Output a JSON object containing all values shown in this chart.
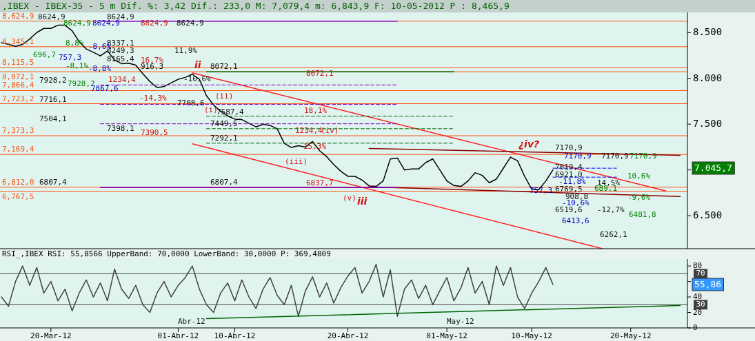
{
  "chart_data": [
    {
      "type": "line",
      "title": ",IBEX - IBEX-35 -  5 m Dif. %: 3,42 Dif.: 233,0 M: 7,079,4 m: 6,843,9 F: 10-05-2012 P : 8,465,9",
      "categories": [
        null,
        null,
        null,
        null,
        null,
        null,
        null,
        null,
        null,
        null,
        null,
        null,
        null,
        null,
        null,
        null,
        null,
        null,
        null,
        null,
        null,
        null,
        null,
        null,
        null,
        null,
        null,
        null,
        null,
        null,
        null,
        null,
        null,
        null,
        null,
        null,
        null,
        null,
        null,
        null,
        null,
        null,
        null,
        null,
        null,
        null,
        null,
        null,
        null,
        null,
        null,
        null,
        null,
        null,
        null,
        null,
        null,
        null,
        null,
        null,
        null,
        null,
        null,
        null,
        null,
        null,
        null,
        null,
        null,
        null,
        null,
        null,
        null,
        null,
        null,
        null,
        null,
        null,
        null,
        null,
        null,
        null,
        null,
        null,
        null,
        null,
        null,
        null,
        null,
        null,
        null,
        null,
        null,
        null,
        null,
        null,
        null
      ],
      "ylim": [
        6140,
        8720
      ],
      "yticks": [
        {
          "value": 6500,
          "label": "6.500"
        },
        {
          "value": 7000,
          "label": null
        },
        {
          "value": 7500,
          "label": "7.500"
        },
        {
          "value": 8000,
          "label": "8.000"
        },
        {
          "value": 8500,
          "label": "8.500"
        }
      ],
      "tick_labels": "y",
      "series": [
        {
          "color": "#000000",
          "values": [
            8390,
            8370,
            8350,
            8370,
            8430,
            8500,
            8545,
            8545,
            8580,
            8580,
            8520,
            8400,
            8320,
            8285,
            8245,
            8300,
            8200,
            8160,
            8165,
            8145,
            8050,
            7965,
            7900,
            7910,
            7950,
            7990,
            8010,
            8045,
            7990,
            7810,
            7710,
            7640,
            7590,
            7555,
            7550,
            7510,
            7470,
            7500,
            7485,
            7450,
            7290,
            7245,
            7265,
            7250,
            7310,
            7210,
            7145,
            7060,
            6985,
            6930,
            6930,
            6890,
            6825,
            6820,
            6880,
            7120,
            7130,
            7000,
            7010,
            7010,
            7080,
            7120,
            7000,
            6880,
            6830,
            6820,
            6880,
            6970,
            6940,
            6860,
            6900,
            7020,
            7140,
            7100,
            6930,
            6790,
            6785,
            6880,
            7000,
            null,
            null,
            null,
            null,
            null,
            null,
            null,
            null,
            null,
            null,
            null,
            null,
            null,
            null,
            null,
            null,
            null,
            null
          ]
        },
        {
          "color": "#ff2020",
          "values": [
            null,
            null,
            null,
            null,
            null,
            null,
            null,
            null,
            null,
            null,
            null,
            null,
            null,
            null,
            null,
            null,
            null,
            null,
            null,
            null,
            null,
            null,
            null,
            null,
            null,
            null,
            null,
            8060,
            null,
            null,
            null,
            null,
            null,
            null,
            null,
            null,
            null,
            null,
            null,
            null,
            null,
            null,
            null,
            null,
            null,
            null,
            null,
            null,
            null,
            null,
            null,
            null,
            null,
            null,
            null,
            null,
            null,
            null,
            null,
            null,
            null,
            null,
            null,
            null,
            null,
            null,
            null,
            null,
            null,
            null,
            null,
            null,
            null,
            null,
            null,
            null,
            null,
            null,
            null,
            null,
            null,
            null,
            null,
            null,
            null,
            null,
            null,
            null,
            null,
            null,
            null,
            null,
            null,
            null,
            6770,
            null,
            null
          ]
        },
        {
          "color": "#ff2020",
          "values": [
            null,
            null,
            null,
            null,
            null,
            null,
            null,
            null,
            null,
            null,
            null,
            null,
            null,
            null,
            null,
            null,
            null,
            null,
            null,
            null,
            null,
            null,
            null,
            null,
            null,
            null,
            null,
            7285,
            null,
            null,
            null,
            null,
            null,
            null,
            null,
            null,
            null,
            null,
            null,
            null,
            null,
            null,
            null,
            null,
            null,
            null,
            null,
            null,
            null,
            null,
            null,
            null,
            null,
            null,
            null,
            null,
            null,
            null,
            null,
            null,
            null,
            null,
            null,
            null,
            null,
            null,
            null,
            null,
            null,
            null,
            null,
            null,
            null,
            null,
            null,
            null,
            null,
            null,
            null,
            null,
            null,
            null,
            null,
            null,
            null,
            6140,
            null,
            null,
            null,
            null,
            null,
            null,
            null,
            null,
            null,
            null,
            null
          ]
        },
        {
          "color": "#8b0000",
          "values": [
            null,
            null,
            null,
            null,
            null,
            null,
            null,
            null,
            null,
            null,
            null,
            null,
            null,
            null,
            null,
            null,
            null,
            null,
            null,
            null,
            null,
            null,
            null,
            null,
            null,
            null,
            null,
            null,
            null,
            null,
            null,
            null,
            null,
            null,
            null,
            null,
            null,
            null,
            null,
            null,
            null,
            null,
            null,
            null,
            null,
            null,
            null,
            null,
            null,
            null,
            null,
            null,
            7235,
            null,
            null,
            null,
            null,
            null,
            null,
            null,
            null,
            null,
            null,
            null,
            null,
            null,
            null,
            null,
            null,
            null,
            null,
            null,
            null,
            null,
            null,
            null,
            null,
            null,
            null,
            null,
            null,
            null,
            null,
            null,
            null,
            null,
            null,
            null,
            null,
            null,
            null,
            null,
            null,
            null,
            null,
            null,
            7160
          ]
        },
        {
          "color": "#8b0000",
          "values": [
            null,
            null,
            null,
            null,
            null,
            null,
            null,
            null,
            null,
            null,
            null,
            null,
            null,
            null,
            null,
            null,
            null,
            null,
            null,
            null,
            null,
            null,
            null,
            null,
            null,
            null,
            null,
            null,
            null,
            null,
            null,
            null,
            null,
            null,
            null,
            null,
            null,
            null,
            null,
            null,
            null,
            null,
            null,
            null,
            null,
            null,
            null,
            null,
            null,
            null,
            null,
            null,
            6815,
            null,
            null,
            null,
            null,
            null,
            null,
            null,
            null,
            null,
            null,
            null,
            null,
            null,
            null,
            null,
            null,
            null,
            null,
            null,
            null,
            null,
            null,
            null,
            null,
            null,
            null,
            null,
            null,
            null,
            null,
            null,
            null,
            null,
            null,
            null,
            null,
            null,
            null,
            null,
            null,
            null,
            null,
            null,
            6710
          ]
        },
        {
          "color": "#8000c0",
          "values": [
            null,
            null,
            null,
            null,
            null,
            null,
            null,
            null,
            null,
            null,
            null,
            null,
            null,
            null,
            8625,
            null,
            null,
            null,
            null,
            null,
            null,
            null,
            null,
            null,
            null,
            null,
            null,
            null,
            null,
            null,
            null,
            null,
            null,
            null,
            null,
            null,
            null,
            null,
            null,
            null,
            null,
            null,
            null,
            null,
            null,
            null,
            null,
            null,
            null,
            null,
            null,
            null,
            null,
            null,
            null,
            null,
            8625,
            null,
            null,
            null,
            null,
            null,
            null,
            null,
            null,
            null,
            null,
            null,
            null,
            null,
            null,
            null,
            null,
            null,
            null,
            null,
            null,
            null,
            null,
            null,
            null,
            null,
            null,
            null,
            null,
            null,
            null,
            null,
            null,
            null,
            null,
            null,
            null,
            null,
            null,
            null,
            null
          ]
        },
        {
          "color": "#8000c0",
          "values": [
            null,
            null,
            null,
            null,
            null,
            null,
            null,
            null,
            null,
            null,
            null,
            null,
            null,
            null,
            6807,
            null,
            null,
            null,
            null,
            null,
            null,
            null,
            null,
            null,
            null,
            null,
            null,
            null,
            null,
            null,
            null,
            null,
            null,
            null,
            null,
            null,
            null,
            null,
            null,
            null,
            null,
            null,
            null,
            null,
            null,
            null,
            null,
            null,
            null,
            null,
            null,
            null,
            null,
            null,
            null,
            null,
            6807,
            null,
            null,
            null,
            null,
            null,
            null,
            null,
            null,
            null,
            null,
            null,
            null,
            null,
            null,
            null,
            null,
            null,
            null,
            null,
            null,
            null,
            null,
            null,
            null,
            null,
            null,
            null,
            null,
            null,
            null,
            null,
            null,
            null,
            null,
            null,
            null,
            null,
            null,
            null,
            null
          ]
        },
        {
          "color": "#8000c0",
          "line_style": "dashed",
          "values": [
            null,
            null,
            null,
            null,
            null,
            null,
            null,
            null,
            null,
            null,
            null,
            null,
            null,
            null,
            7928,
            null,
            null,
            null,
            null,
            null,
            null,
            null,
            null,
            null,
            null,
            null,
            null,
            null,
            null,
            null,
            null,
            null,
            null,
            null,
            null,
            null,
            null,
            null,
            null,
            null,
            null,
            null,
            null,
            null,
            null,
            null,
            null,
            null,
            null,
            null,
            null,
            null,
            null,
            null,
            null,
            null,
            7928,
            null,
            null,
            null,
            null,
            null,
            null,
            null,
            null,
            null,
            null,
            null,
            null,
            null,
            null,
            null,
            null,
            null,
            null,
            null,
            null,
            null,
            null,
            null,
            null,
            null,
            null,
            null,
            null,
            null,
            null,
            null,
            null,
            null,
            null,
            null,
            null,
            null,
            null,
            null,
            null
          ]
        },
        {
          "color": "#8000c0",
          "line_style": "dashed",
          "values": [
            null,
            null,
            null,
            null,
            null,
            null,
            null,
            null,
            null,
            null,
            null,
            null,
            null,
            null,
            7716,
            null,
            null,
            null,
            null,
            null,
            null,
            null,
            null,
            null,
            null,
            null,
            null,
            null,
            null,
            null,
            null,
            null,
            null,
            null,
            null,
            null,
            null,
            null,
            null,
            null,
            null,
            null,
            null,
            null,
            null,
            null,
            null,
            null,
            null,
            null,
            null,
            null,
            null,
            null,
            null,
            null,
            7716,
            null,
            null,
            null,
            null,
            null,
            null,
            null,
            null,
            null,
            null,
            null,
            null,
            null,
            null,
            null,
            null,
            null,
            null,
            null,
            null,
            null,
            null,
            null,
            null,
            null,
            null,
            null,
            null,
            null,
            null,
            null,
            null,
            null,
            null,
            null,
            null,
            null,
            null,
            null,
            null
          ]
        },
        {
          "color": "#8000c0",
          "line_style": "dashed",
          "values": [
            null,
            null,
            null,
            null,
            null,
            null,
            null,
            null,
            null,
            null,
            null,
            null,
            null,
            null,
            7504,
            null,
            null,
            null,
            null,
            null,
            null,
            null,
            null,
            null,
            null,
            null,
            null,
            null,
            null,
            null,
            null,
            null,
            null,
            null,
            null,
            null,
            null,
            null,
            null,
            null,
            null,
            null,
            null,
            null,
            null,
            null,
            null,
            null,
            null,
            null,
            null,
            null,
            null,
            null,
            null,
            null,
            7504,
            null,
            null,
            null,
            null,
            null,
            null,
            null,
            null,
            null,
            null,
            null,
            null,
            null,
            null,
            null,
            null,
            null,
            null,
            null,
            null,
            null,
            null,
            null,
            null,
            null,
            null,
            null,
            null,
            null,
            null,
            null,
            null,
            null,
            null,
            null,
            null,
            null,
            null,
            null,
            null
          ]
        },
        {
          "color": "#006400",
          "values": [
            null,
            null,
            null,
            null,
            null,
            null,
            null,
            null,
            null,
            null,
            null,
            null,
            null,
            null,
            null,
            null,
            null,
            null,
            null,
            null,
            null,
            null,
            null,
            null,
            null,
            null,
            null,
            null,
            null,
            8072,
            null,
            null,
            null,
            null,
            null,
            null,
            null,
            null,
            null,
            null,
            null,
            null,
            null,
            null,
            null,
            null,
            null,
            null,
            null,
            null,
            null,
            null,
            null,
            null,
            null,
            null,
            null,
            null,
            null,
            null,
            null,
            null,
            null,
            null,
            8072,
            null,
            null,
            null,
            null,
            null,
            null,
            null,
            null,
            null,
            null,
            null,
            null,
            null,
            null,
            null,
            null,
            null,
            null,
            null,
            null,
            null,
            null,
            null,
            null,
            null,
            null,
            null,
            null,
            null,
            null,
            null,
            null
          ]
        },
        {
          "color": "#006400",
          "line_style": "dashed",
          "values": [
            null,
            null,
            null,
            null,
            null,
            null,
            null,
            null,
            null,
            null,
            null,
            null,
            null,
            null,
            null,
            null,
            null,
            null,
            null,
            null,
            null,
            null,
            null,
            null,
            null,
            null,
            null,
            null,
            null,
            7587,
            null,
            null,
            null,
            null,
            null,
            null,
            null,
            null,
            null,
            null,
            null,
            null,
            null,
            null,
            null,
            null,
            null,
            null,
            null,
            null,
            null,
            null,
            null,
            null,
            null,
            null,
            null,
            null,
            null,
            null,
            null,
            null,
            null,
            null,
            7587,
            null,
            null,
            null,
            null,
            null,
            null,
            null,
            null,
            null,
            null,
            null,
            null,
            null,
            null,
            null,
            null,
            null,
            null,
            null,
            null,
            null,
            null,
            null,
            null,
            null,
            null,
            null,
            null,
            null,
            null,
            null,
            null
          ]
        },
        {
          "color": "#006400",
          "line_style": "dashed",
          "values": [
            null,
            null,
            null,
            null,
            null,
            null,
            null,
            null,
            null,
            null,
            null,
            null,
            null,
            null,
            null,
            null,
            null,
            null,
            null,
            null,
            null,
            null,
            null,
            null,
            null,
            null,
            null,
            null,
            null,
            7450,
            null,
            null,
            null,
            null,
            null,
            null,
            null,
            null,
            null,
            null,
            null,
            null,
            null,
            null,
            null,
            null,
            null,
            null,
            null,
            null,
            null,
            null,
            null,
            null,
            null,
            null,
            null,
            null,
            null,
            null,
            null,
            null,
            null,
            null,
            7450,
            null,
            null,
            null,
            null,
            null,
            null,
            null,
            null,
            null,
            null,
            null,
            null,
            null,
            null,
            null,
            null,
            null,
            null,
            null,
            null,
            null,
            null,
            null,
            null,
            null,
            null,
            null,
            null,
            null,
            null,
            null,
            null
          ]
        },
        {
          "color": "#006400",
          "line_style": "dashed",
          "values": [
            null,
            null,
            null,
            null,
            null,
            null,
            null,
            null,
            null,
            null,
            null,
            null,
            null,
            null,
            null,
            null,
            null,
            null,
            null,
            null,
            null,
            null,
            null,
            null,
            null,
            null,
            null,
            null,
            null,
            7292,
            null,
            null,
            null,
            null,
            null,
            null,
            null,
            null,
            null,
            null,
            null,
            null,
            null,
            null,
            null,
            null,
            null,
            null,
            null,
            null,
            null,
            null,
            null,
            null,
            null,
            null,
            null,
            null,
            null,
            null,
            null,
            null,
            null,
            null,
            7292,
            null,
            null,
            null,
            null,
            null,
            null,
            null,
            null,
            null,
            null,
            null,
            null,
            null,
            null,
            null,
            null,
            null,
            null,
            null,
            null,
            null,
            null,
            null,
            null,
            null,
            null,
            null,
            null,
            null,
            null,
            null,
            null
          ]
        },
        {
          "color": "#0000ff",
          "line_style": "dashed",
          "values": [
            null,
            null,
            null,
            null,
            null,
            null,
            null,
            null,
            null,
            null,
            null,
            null,
            null,
            null,
            null,
            null,
            null,
            null,
            null,
            null,
            null,
            null,
            null,
            null,
            null,
            null,
            null,
            null,
            null,
            null,
            null,
            null,
            null,
            null,
            null,
            null,
            null,
            null,
            null,
            null,
            null,
            null,
            null,
            null,
            null,
            null,
            null,
            null,
            null,
            null,
            null,
            null,
            null,
            null,
            null,
            null,
            null,
            null,
            null,
            null,
            null,
            null,
            null,
            null,
            null,
            null,
            null,
            null,
            null,
            null,
            null,
            null,
            null,
            null,
            null,
            null,
            null,
            null,
            7019,
            null,
            null,
            null,
            null,
            null,
            null,
            null,
            null,
            7019,
            null,
            null,
            null,
            null,
            null,
            null,
            null,
            null,
            null
          ]
        },
        {
          "color": "#0000ff",
          "line_style": "dashed",
          "values": [
            null,
            null,
            null,
            null,
            null,
            null,
            null,
            null,
            null,
            null,
            null,
            null,
            null,
            null,
            null,
            null,
            null,
            null,
            null,
            null,
            null,
            null,
            null,
            null,
            null,
            null,
            null,
            null,
            null,
            null,
            null,
            null,
            null,
            null,
            null,
            null,
            null,
            null,
            null,
            null,
            null,
            null,
            null,
            null,
            null,
            null,
            null,
            null,
            null,
            null,
            null,
            null,
            null,
            null,
            null,
            null,
            null,
            null,
            null,
            null,
            null,
            null,
            null,
            null,
            null,
            null,
            null,
            null,
            null,
            null,
            null,
            null,
            null,
            null,
            null,
            null,
            null,
            null,
            6921,
            null,
            null,
            null,
            null,
            null,
            null,
            null,
            null,
            6921,
            null,
            null,
            null,
            null,
            null,
            null,
            null,
            null,
            null
          ]
        }
      ],
      "ref_lines": [
        {
          "axis": "y",
          "value": 8624.9,
          "label": "8,624,9",
          "color": "#ff5010"
        },
        {
          "axis": "y",
          "value": 8345.1,
          "label": "8,345,1",
          "color": "#ff5010"
        },
        {
          "axis": "y",
          "value": 8115.5,
          "label": "8,115,5",
          "color": "#ff5010"
        },
        {
          "axis": "y",
          "value": 8072.1,
          "label": "8,072,1",
          "color": "#ff5010"
        },
        {
          "axis": "y",
          "value": 7866.4,
          "label": "7,866,4",
          "color": "#ff5010"
        },
        {
          "axis": "y",
          "value": 7723.2,
          "label": "7,723,2",
          "color": "#ff5010"
        },
        {
          "axis": "y",
          "value": 7373.3,
          "label": "7,373,3",
          "color": "#ff5010"
        },
        {
          "axis": "y",
          "value": 7169.4,
          "label": "7,169,4",
          "color": "#ff5010"
        },
        {
          "axis": "y",
          "value": 6812.0,
          "label": "6,812,0",
          "color": "#ff5010"
        },
        {
          "axis": "y",
          "value": 6767.5,
          "label": "6,767,5",
          "color": "#ff5010"
        }
      ],
      "annotations": [
        "8624,9",
        "8624,9",
        "8624,9",
        "8624,9",
        "8624,9",
        "8624,9",
        "8337,1",
        "8249,3",
        "8165,4",
        "8,8%",
        "-8,6%",
        "696,7",
        "757,3",
        "-8,1%",
        "-8,8%",
        "16,7%",
        "916,3",
        "11,9%",
        "-10,6%",
        "7928,2",
        "7928,2",
        "7867,6",
        "1234,4",
        "-14,3%",
        "7708,6",
        "7716,1",
        "7504,1",
        "7398,1",
        "7390,5",
        "8072,1",
        "8072,1",
        "7587,4",
        "7449,5",
        "7292,1",
        "6807,4",
        "6807,4",
        "6837,7",
        "18,1%",
        "1234,4",
        "15,3%",
        "7170,9",
        "7170,9",
        "7170,9",
        "7170,9",
        "7019,4",
        "6921,0",
        "-11,8%",
        "14,5%",
        "6769,5",
        "689,1",
        "757,3",
        "10,6%",
        "908,8",
        "-10,6%",
        "-9,6%",
        "6519,6",
        "-12,7%",
        "6413,6",
        "6481,8",
        "6262,1",
        "ii",
        "(ii)",
        "(i)",
        "(iii)",
        "(iv)",
        "(v)",
        "iii",
        "¿iv?",
        "7.045,7"
      ]
    },
    {
      "type": "line",
      "title": "RSI_,IBEX RSI: 55,8566 UpperBand: 70,0000 LowerBand: 30,0000 P: 369,4809",
      "categories": [
        null,
        null,
        null,
        null,
        null,
        null,
        null,
        "20-Mar-12",
        null,
        null,
        null,
        null,
        null,
        null,
        null,
        null,
        null,
        null,
        null,
        null,
        null,
        null,
        null,
        null,
        null,
        "01-Abr-12",
        null,
        null,
        null,
        null,
        null,
        null,
        null,
        "10-Abr-12",
        null,
        null,
        null,
        null,
        null,
        null,
        null,
        null,
        null,
        null,
        null,
        null,
        null,
        null,
        null,
        "20-Abr-12",
        null,
        null,
        null,
        null,
        null,
        null,
        null,
        null,
        null,
        null,
        null,
        null,
        null,
        "01-May-12",
        null,
        null,
        null,
        null,
        null,
        null,
        null,
        null,
        null,
        null,
        null,
        "10-May-12",
        null,
        null,
        null,
        null,
        null,
        null,
        null,
        null,
        null,
        null,
        null,
        null,
        null,
        "20-May-12",
        null,
        null,
        null,
        null,
        null,
        null,
        null
      ],
      "ylim": [
        0,
        89
      ],
      "yticks": [
        0,
        20,
        40,
        {
          "value": 60,
          "label": null
        },
        80
      ],
      "series": [
        {
          "color": "#404040",
          "values": [
            40,
            28,
            60,
            80,
            55,
            78,
            45,
            60,
            35,
            50,
            22,
            45,
            62,
            40,
            58,
            35,
            76,
            50,
            38,
            55,
            30,
            20,
            45,
            60,
            40,
            55,
            65,
            80,
            50,
            30,
            20,
            45,
            58,
            35,
            62,
            40,
            25,
            50,
            65,
            42,
            30,
            55,
            15,
            48,
            66,
            40,
            58,
            32,
            52,
            67,
            78,
            45,
            60,
            82,
            40,
            75,
            15,
            50,
            62,
            38,
            55,
            30,
            48,
            65,
            35,
            52,
            78,
            45,
            60,
            30,
            80,
            55,
            78,
            40,
            25,
            45,
            60,
            78,
            56,
            null,
            null,
            null,
            null,
            null,
            null,
            null,
            null,
            null,
            null,
            null,
            null,
            null,
            null,
            null,
            null,
            null,
            null
          ]
        },
        {
          "color": "#006400",
          "values": [
            null,
            null,
            null,
            null,
            null,
            null,
            null,
            null,
            null,
            null,
            null,
            null,
            null,
            null,
            null,
            null,
            null,
            null,
            null,
            null,
            null,
            null,
            null,
            null,
            null,
            null,
            null,
            null,
            null,
            12,
            null,
            null,
            null,
            null,
            null,
            null,
            null,
            null,
            null,
            null,
            null,
            null,
            null,
            null,
            null,
            null,
            null,
            null,
            null,
            null,
            null,
            null,
            null,
            null,
            null,
            null,
            null,
            null,
            null,
            null,
            null,
            null,
            null,
            null,
            null,
            null,
            null,
            null,
            null,
            null,
            null,
            null,
            null,
            null,
            null,
            null,
            null,
            null,
            null,
            null,
            null,
            null,
            null,
            null,
            null,
            null,
            null,
            null,
            null,
            null,
            null,
            null,
            null,
            null,
            null,
            null,
            29
          ]
        }
      ],
      "ref_lines": [
        {
          "axis": "y",
          "value": 70,
          "label": "70",
          "color": "#404040"
        },
        {
          "axis": "y",
          "value": 30,
          "label": "30",
          "color": "#404040"
        }
      ],
      "annotations": [
        "Abr-12",
        "May-12",
        "55,86"
      ]
    }
  ]
}
